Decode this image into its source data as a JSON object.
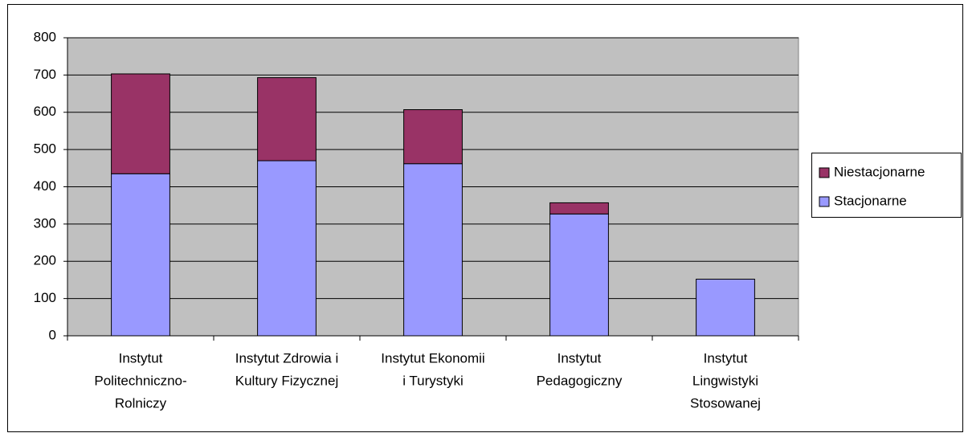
{
  "chart_data": {
    "type": "stacked_bar",
    "categories": [
      [
        "Instytut",
        "Politechniczno-",
        "Rolniczy"
      ],
      [
        "Instytut Zdrowia i",
        "Kultury Fizycznej"
      ],
      [
        "Instytut Ekonomii",
        "i Turystyki"
      ],
      [
        "Instytut",
        "Pedagogiczny"
      ],
      [
        "Instytut",
        "Lingwistyki",
        "Stosowanej"
      ]
    ],
    "series": [
      {
        "name": "Stacjonarne",
        "color": "#9999ff",
        "values": [
          435,
          470,
          462,
          327,
          152
        ]
      },
      {
        "name": "Niestacjonarne",
        "color": "#993366",
        "values": [
          268,
          223,
          145,
          30,
          0
        ]
      }
    ],
    "ylim": [
      0,
      800
    ],
    "yticks": [
      0,
      100,
      200,
      300,
      400,
      500,
      600,
      700,
      800
    ],
    "grid": true,
    "legend": "right"
  }
}
